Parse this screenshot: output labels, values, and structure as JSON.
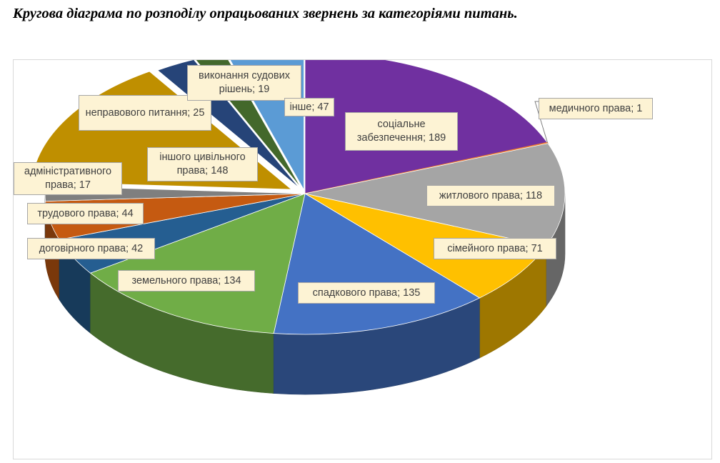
{
  "title": "Кругова діаграма по розподілу опрацьованих звернень за категоріями питань.",
  "chart_data": {
    "type": "pie",
    "style": "3d-exploded",
    "legend": "none",
    "series": [
      {
        "label": "соціальне забезпечення",
        "value": 189,
        "display": "соціальне забезпечення; 189",
        "color": "#7030a0"
      },
      {
        "label": "медичного права",
        "value": 1,
        "display": "медичного права; 1",
        "color": "#ed7d31"
      },
      {
        "label": "житлового права",
        "value": 118,
        "display": "житлового права; 118",
        "color": "#a5a5a5"
      },
      {
        "label": "сімейного права",
        "value": 71,
        "display": "сімейного права; 71",
        "color": "#ffc000"
      },
      {
        "label": "спадкового права",
        "value": 135,
        "display": "спадкового права; 135",
        "color": "#4472c4"
      },
      {
        "label": "земельного права",
        "value": 134,
        "display": "земельного права; 134",
        "color": "#70ad47"
      },
      {
        "label": "договірного права",
        "value": 42,
        "display": "договірного права; 42",
        "color": "#255e91"
      },
      {
        "label": "трудового права",
        "value": 44,
        "display": "трудового права; 44",
        "color": "#c55a11"
      },
      {
        "label": "адміністративного права",
        "value": 17,
        "display": "адміністративного права; 17",
        "color": "#7f7f7f"
      },
      {
        "label": "іншого цивільного права",
        "value": 148,
        "display": "іншого цивільного права; 148",
        "color": "#bf8f00"
      },
      {
        "label": "неправового питання",
        "value": 25,
        "display": "неправового питання; 25",
        "color": "#264478"
      },
      {
        "label": "виконання судових рішень",
        "value": 19,
        "display": "виконання судових рішень; 19",
        "color": "#43682b"
      },
      {
        "label": "інше",
        "value": 47,
        "display": "інше; 47",
        "color": "#5b9bd5"
      }
    ]
  }
}
